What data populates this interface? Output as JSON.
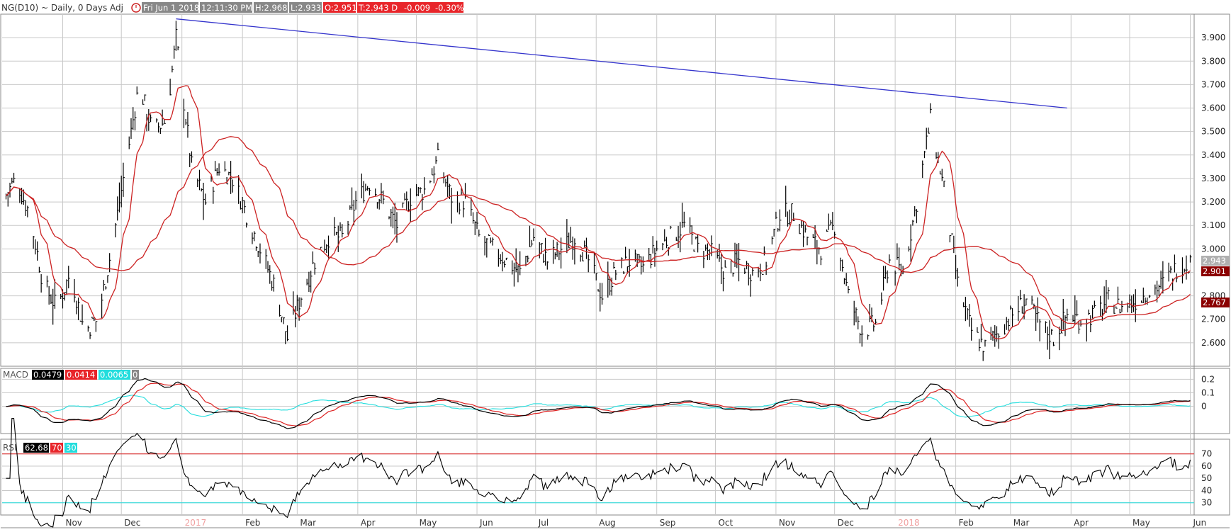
{
  "header": {
    "symbol_text": "NG(D10) ~ Daily, 0 Days Adj",
    "date": "Fri Jun 1 2018",
    "time": "12:11:30 PM",
    "high": "H:2.968",
    "low": "L:2.933",
    "open": "O:2.951",
    "last": "T:2.943 D",
    "change": "-0.009",
    "change_pct": "-0.30%"
  },
  "price_panel": {
    "y_ticks": [
      "3.900",
      "3.800",
      "3.700",
      "3.600",
      "3.500",
      "3.400",
      "3.300",
      "3.200",
      "3.100",
      "3.000",
      "2.900",
      "2.800",
      "2.700",
      "2.600"
    ],
    "price_label_current": "2.943",
    "price_label_ma_short": "2.901",
    "price_label_ma_long": "2.767"
  },
  "macd_panel": {
    "label": "MACD",
    "macd_value": "0.0479",
    "signal_value": "0.0414",
    "hist_value": "0.0065",
    "zero_value": "0",
    "y_ticks": [
      "0.2",
      "0.1",
      "0"
    ]
  },
  "rsi_panel": {
    "label": "RSI",
    "rsi_value": "62.68",
    "upper_level": "70",
    "lower_level": "30",
    "y_ticks": [
      "70",
      "60",
      "50",
      "40",
      "30"
    ]
  },
  "x_axis": {
    "labels": [
      "Nov",
      "Dec",
      "2017",
      "Feb",
      "Mar",
      "Apr",
      "May",
      "Jun",
      "Jul",
      "Aug",
      "Sep",
      "Oct",
      "Nov",
      "Dec",
      "2018",
      "Feb",
      "Mar",
      "Apr",
      "May",
      "Jun"
    ]
  },
  "colors": {
    "bars": "#000000",
    "ma": "#cc2222",
    "trendline": "#3333cc",
    "macd_line": "#000000",
    "signal_line": "#dd2222",
    "hist_line": "#22dddd",
    "rsi_line": "#000000",
    "rsi_upper": "#dd2222",
    "rsi_lower": "#22dddd"
  },
  "chart_data": {
    "type": "line",
    "title": "NG(D10) ~ Daily, 0 Days Adj",
    "y_range": [
      2.5,
      4.0
    ],
    "price_path": [
      [
        "2016-10-01",
        3.2
      ],
      [
        "2016-10-08",
        3.3
      ],
      [
        "2016-10-15",
        3.15
      ],
      [
        "2016-10-22",
        2.85
      ],
      [
        "2016-10-29",
        2.75
      ],
      [
        "2016-11-05",
        2.9
      ],
      [
        "2016-11-12",
        2.65
      ],
      [
        "2016-11-19",
        2.7
      ],
      [
        "2016-11-26",
        3.0
      ],
      [
        "2016-12-03",
        3.35
      ],
      [
        "2016-12-10",
        3.7
      ],
      [
        "2016-12-17",
        3.5
      ],
      [
        "2016-12-24",
        3.55
      ],
      [
        "2016-12-29",
        3.9
      ],
      [
        "2017-01-06",
        3.35
      ],
      [
        "2017-01-13",
        3.2
      ],
      [
        "2017-01-20",
        3.35
      ],
      [
        "2017-01-27",
        3.3
      ],
      [
        "2017-02-03",
        3.15
      ],
      [
        "2017-02-10",
        3.0
      ],
      [
        "2017-02-17",
        2.85
      ],
      [
        "2017-02-24",
        2.62
      ],
      [
        "2017-03-03",
        2.8
      ],
      [
        "2017-03-10",
        2.95
      ],
      [
        "2017-03-17",
        3.05
      ],
      [
        "2017-03-24",
        3.05
      ],
      [
        "2017-03-31",
        3.2
      ],
      [
        "2017-04-07",
        3.28
      ],
      [
        "2017-04-14",
        3.2
      ],
      [
        "2017-04-21",
        3.1
      ],
      [
        "2017-04-28",
        3.22
      ],
      [
        "2017-05-05",
        3.25
      ],
      [
        "2017-05-12",
        3.38
      ],
      [
        "2017-05-19",
        3.22
      ],
      [
        "2017-05-26",
        3.2
      ],
      [
        "2017-06-02",
        3.05
      ],
      [
        "2017-06-09",
        3.0
      ],
      [
        "2017-06-16",
        2.95
      ],
      [
        "2017-06-23",
        2.9
      ],
      [
        "2017-06-30",
        3.05
      ],
      [
        "2017-07-07",
        2.95
      ],
      [
        "2017-07-14",
        3.0
      ],
      [
        "2017-07-21",
        3.05
      ],
      [
        "2017-07-28",
        2.95
      ],
      [
        "2017-08-04",
        2.8
      ],
      [
        "2017-08-11",
        2.9
      ],
      [
        "2017-08-18",
        2.95
      ],
      [
        "2017-08-25",
        2.92
      ],
      [
        "2017-09-01",
        3.0
      ],
      [
        "2017-09-08",
        3.05
      ],
      [
        "2017-09-15",
        3.1
      ],
      [
        "2017-09-22",
        3.0
      ],
      [
        "2017-09-29",
        2.98
      ],
      [
        "2017-10-06",
        2.9
      ],
      [
        "2017-10-13",
        2.95
      ],
      [
        "2017-10-20",
        2.9
      ],
      [
        "2017-10-27",
        2.95
      ],
      [
        "2017-11-03",
        3.15
      ],
      [
        "2017-11-10",
        3.15
      ],
      [
        "2017-11-17",
        3.05
      ],
      [
        "2017-11-24",
        3.0
      ],
      [
        "2017-12-01",
        3.1
      ],
      [
        "2017-12-08",
        2.8
      ],
      [
        "2017-12-15",
        2.65
      ],
      [
        "2017-12-22",
        2.68
      ],
      [
        "2017-12-29",
        2.95
      ],
      [
        "2018-01-05",
        2.9
      ],
      [
        "2018-01-12",
        3.2
      ],
      [
        "2018-01-19",
        3.55
      ],
      [
        "2018-01-26",
        3.25
      ],
      [
        "2018-02-02",
        2.85
      ],
      [
        "2018-02-09",
        2.65
      ],
      [
        "2018-02-16",
        2.58
      ],
      [
        "2018-02-23",
        2.65
      ],
      [
        "2018-03-02",
        2.72
      ],
      [
        "2018-03-09",
        2.78
      ],
      [
        "2018-03-16",
        2.68
      ],
      [
        "2018-03-23",
        2.62
      ],
      [
        "2018-03-30",
        2.72
      ],
      [
        "2018-04-06",
        2.7
      ],
      [
        "2018-04-13",
        2.72
      ],
      [
        "2018-04-20",
        2.78
      ],
      [
        "2018-04-27",
        2.75
      ],
      [
        "2018-05-04",
        2.78
      ],
      [
        "2018-05-11",
        2.82
      ],
      [
        "2018-05-18",
        2.85
      ],
      [
        "2018-05-25",
        2.92
      ],
      [
        "2018-06-01",
        2.943
      ]
    ],
    "trendline": {
      "from": [
        "2016-12-29",
        3.98
      ],
      "to": [
        "2018-03-30",
        3.6
      ]
    },
    "rsi_levels": [
      70,
      30
    ]
  }
}
